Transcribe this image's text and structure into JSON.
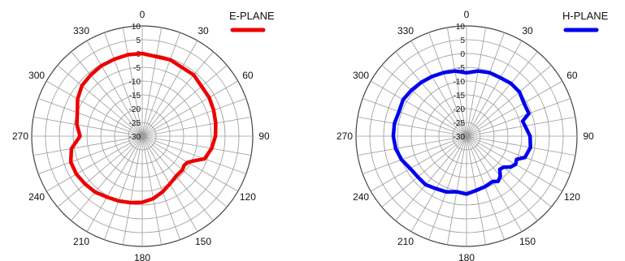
{
  "chart_data": [
    {
      "type": "polar-line",
      "legend": {
        "label": "E-PLANE",
        "color": "#ee0000",
        "placement": "top-right"
      },
      "radial_axis": {
        "min": -30,
        "max": 10,
        "step": 5,
        "tick_labels": [
          "10",
          "5",
          "0",
          "-5",
          "-10",
          "-15",
          "-20",
          "-25",
          "-30"
        ]
      },
      "angular_axis": {
        "step_labels": 30,
        "step_gridlines": 10,
        "direction": "clockwise",
        "zero": "top",
        "tick_labels": [
          "0",
          "30",
          "60",
          "90",
          "120",
          "150",
          "180",
          "210",
          "240",
          "270",
          "300",
          "330"
        ]
      },
      "series": [
        {
          "color": "#ee0000",
          "theta": [
            0,
            20,
            40,
            60,
            70,
            80,
            90,
            100,
            110,
            115,
            120,
            125,
            130,
            140,
            150,
            160,
            170,
            180,
            190,
            200,
            210,
            220,
            230,
            240,
            250,
            260,
            270,
            280,
            290,
            300,
            310,
            320,
            330,
            340,
            350,
            360
          ],
          "r": [
            0,
            -0.5,
            -1,
            -2,
            -2.5,
            -3,
            -3.5,
            -4.5,
            -6,
            -9,
            -11,
            -11.5,
            -11,
            -11,
            -10,
            -8.5,
            -7,
            -6,
            -5.5,
            -5,
            -4.5,
            -3.5,
            -3,
            -2.5,
            -2.5,
            -4,
            -7.5,
            -6,
            -5,
            -3,
            -1.5,
            -1,
            -0.5,
            -0.3,
            0,
            0
          ]
        }
      ]
    },
    {
      "type": "polar-line",
      "legend": {
        "label": "H-PLANE",
        "color": "#0000ee",
        "placement": "top-right"
      },
      "radial_axis": {
        "min": -30,
        "max": 10,
        "step": 5,
        "tick_labels": [
          "10",
          "5",
          "0",
          "-5",
          "-10",
          "-15",
          "-20",
          "-25",
          "-30"
        ]
      },
      "angular_axis": {
        "step_labels": 30,
        "step_gridlines": 10,
        "direction": "clockwise",
        "zero": "top",
        "tick_labels": [
          "0",
          "30",
          "60",
          "90",
          "120",
          "150",
          "180",
          "210",
          "240",
          "270",
          "300",
          "330"
        ]
      },
      "series": [
        {
          "color": "#0000ee",
          "theta": [
            0,
            10,
            20,
            30,
            40,
            50,
            60,
            70,
            75,
            80,
            90,
            100,
            110,
            115,
            120,
            125,
            130,
            135,
            140,
            145,
            150,
            160,
            170,
            180,
            190,
            200,
            210,
            220,
            230,
            240,
            250,
            260,
            270,
            280,
            290,
            300,
            310,
            320,
            330,
            340,
            350,
            360
          ],
          "r": [
            -7,
            -6,
            -5.5,
            -5.5,
            -5,
            -5,
            -6,
            -6,
            -9,
            -8.5,
            -7,
            -6.5,
            -7.5,
            -10,
            -9.5,
            -10.5,
            -12.5,
            -13,
            -11,
            -10,
            -11,
            -10.5,
            -10,
            -9,
            -9.5,
            -8.5,
            -8,
            -7,
            -7,
            -6.5,
            -5,
            -4,
            -3.5,
            -3.5,
            -4,
            -3.5,
            -4,
            -4.5,
            -5,
            -5.5,
            -6,
            -7
          ]
        }
      ]
    }
  ]
}
